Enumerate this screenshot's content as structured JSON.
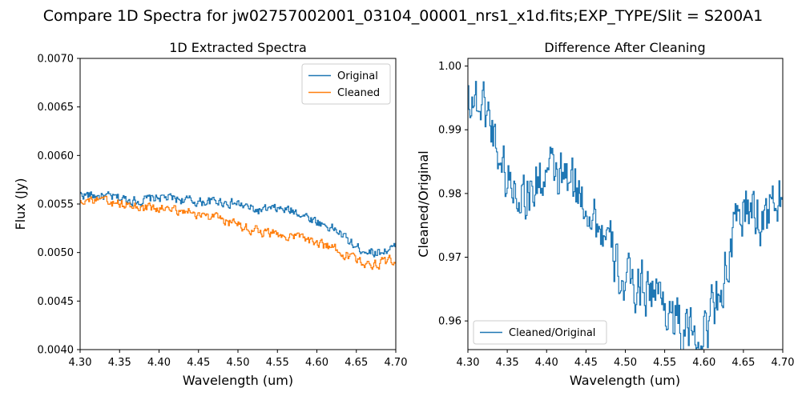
{
  "figure": {
    "suptitle": "Compare 1D Spectra for jw02757002001_03104_00001_nrs1_x1d.fits;EXP_TYPE/Slit = S200A1"
  },
  "colors": {
    "original": "#1f77b4",
    "cleaned": "#ff7f0e",
    "ratio": "#1f77b4"
  },
  "chart_data": [
    {
      "type": "line",
      "drawstyle": "steps",
      "title": "1D Extracted Spectra",
      "xlabel": "Wavelength (um)",
      "ylabel": "Flux (Jy)",
      "xlim": [
        4.3,
        4.7
      ],
      "ylim": [
        0.004,
        0.007
      ],
      "xticks": [
        "4.30",
        "4.35",
        "4.40",
        "4.45",
        "4.50",
        "4.55",
        "4.60",
        "4.65",
        "4.70"
      ],
      "yticks": [
        "0.0040",
        "0.0045",
        "0.0050",
        "0.0055",
        "0.0060",
        "0.0065",
        "0.0070"
      ],
      "legend": "upper right",
      "grid": false,
      "x": [
        4.3,
        4.325,
        4.35,
        4.375,
        4.4,
        4.425,
        4.45,
        4.475,
        4.5,
        4.525,
        4.55,
        4.575,
        4.6,
        4.625,
        4.65,
        4.675,
        4.7
      ],
      "series": [
        {
          "name": "Original",
          "values": [
            0.0056,
            0.00558,
            0.00556,
            0.00553,
            0.00557,
            0.00555,
            0.00552,
            0.00553,
            0.0055,
            0.00543,
            0.00545,
            0.00542,
            0.00532,
            0.00523,
            0.00505,
            0.005,
            0.00505
          ]
        },
        {
          "name": "Cleaned",
          "values": [
            0.00555,
            0.00553,
            0.0055,
            0.00546,
            0.00545,
            0.00544,
            0.0054,
            0.00534,
            0.00529,
            0.00522,
            0.00519,
            0.00516,
            0.0051,
            0.00503,
            0.00492,
            0.00488,
            0.00493
          ]
        }
      ]
    },
    {
      "type": "line",
      "drawstyle": "steps",
      "title": "Difference After Cleaning",
      "xlabel": "Wavelength (um)",
      "ylabel": "Cleaned/Original",
      "xlim": [
        4.3,
        4.7
      ],
      "ylim": [
        0.9555,
        1.0012
      ],
      "xticks": [
        "4.30",
        "4.35",
        "4.40",
        "4.45",
        "4.50",
        "4.55",
        "4.60",
        "4.65",
        "4.70"
      ],
      "yticks": [
        "0.96",
        "0.97",
        "0.98",
        "0.99",
        "1.00"
      ],
      "legend": "lower left",
      "grid": false,
      "x": [
        4.3,
        4.325,
        4.35,
        4.375,
        4.4,
        4.425,
        4.45,
        4.475,
        4.5,
        4.525,
        4.55,
        4.575,
        4.6,
        4.625,
        4.65,
        4.675,
        4.7
      ],
      "series": [
        {
          "name": "Cleaned/Original",
          "values": [
            0.996,
            0.993,
            0.982,
            0.98,
            0.983,
            0.982,
            0.979,
            0.973,
            0.965,
            0.966,
            0.963,
            0.958,
            0.958,
            0.967,
            0.978,
            0.976,
            0.98
          ]
        }
      ]
    }
  ]
}
